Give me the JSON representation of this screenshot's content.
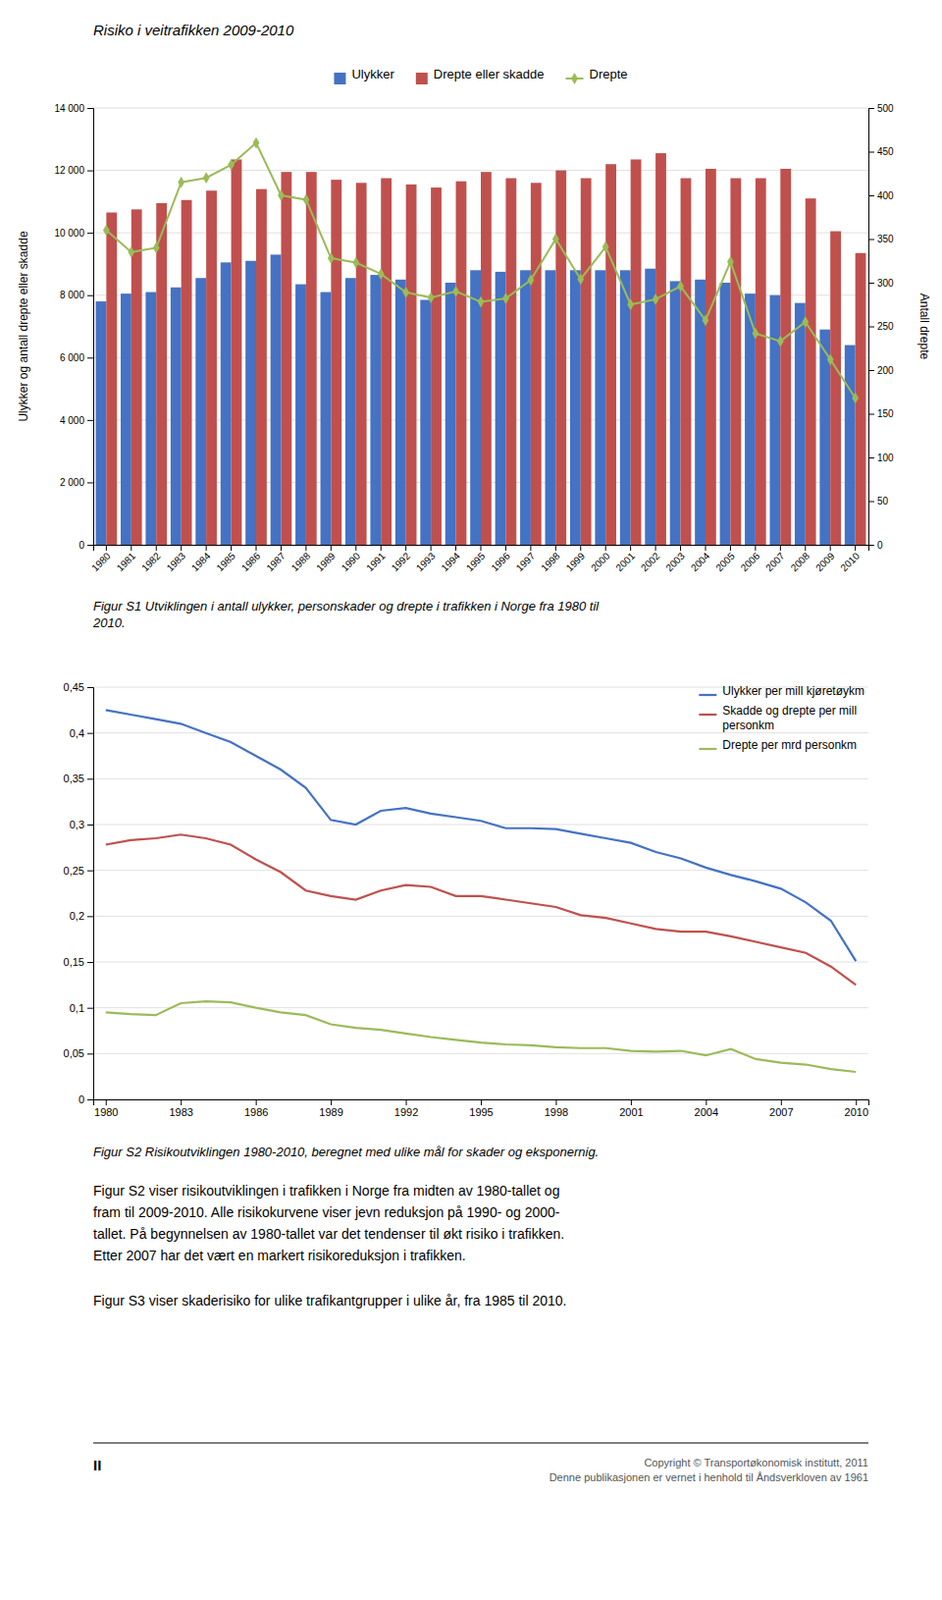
{
  "title": "Risiko i veitrafikken 2009-2010",
  "chart_data": [
    {
      "type": "bar",
      "categories": [
        1980,
        1981,
        1982,
        1983,
        1984,
        1985,
        1986,
        1987,
        1988,
        1989,
        1990,
        1991,
        1992,
        1993,
        1994,
        1995,
        1996,
        1997,
        1998,
        1999,
        2000,
        2001,
        2002,
        2003,
        2004,
        2005,
        2006,
        2007,
        2008,
        2009,
        2010
      ],
      "series": [
        {
          "name": "Ulykker",
          "type": "bar",
          "color": "#4472C4",
          "values": [
            7800,
            8050,
            8100,
            8250,
            8550,
            9050,
            9100,
            9300,
            8350,
            8100,
            8550,
            8650,
            8500,
            7850,
            8400,
            8800,
            8750,
            8800,
            8800,
            8800,
            8800,
            8800,
            8850,
            8450,
            8500,
            8400,
            8050,
            8000,
            7750,
            6900,
            6400
          ]
        },
        {
          "name": "Drepte eller skadde",
          "type": "bar",
          "color": "#C0504D",
          "values": [
            10650,
            10750,
            10950,
            11050,
            11350,
            12350,
            11400,
            11950,
            11950,
            11700,
            11600,
            11750,
            11550,
            11450,
            11650,
            11950,
            11750,
            11600,
            12000,
            11750,
            12200,
            12350,
            12550,
            11750,
            12050,
            11750,
            11750,
            12050,
            11100,
            10050,
            9350
          ]
        },
        {
          "name": "Drepte",
          "type": "line",
          "axis": "y2",
          "marker": "diamond",
          "color": "#9BBB59",
          "values": [
            360,
            335,
            340,
            415,
            420,
            435,
            460,
            400,
            395,
            328,
            323,
            310,
            289,
            283,
            290,
            278,
            282,
            303,
            350,
            304,
            341,
            275,
            281,
            296,
            257,
            324,
            242,
            233,
            255,
            212,
            168
          ]
        }
      ],
      "ylabel": "Ulykker og antall drepte eller skadde",
      "y2label": "Antall drepte",
      "ylim": [
        0,
        14000
      ],
      "yticks": [
        0,
        {
          "value": 2000,
          "label": "2 000"
        },
        {
          "value": 4000,
          "label": "4 000"
        },
        {
          "value": 6000,
          "label": "6 000"
        },
        {
          "value": 8000,
          "label": "8 000"
        },
        {
          "value": 10000,
          "label": "10 000"
        },
        {
          "value": 12000,
          "label": "12 000"
        },
        {
          "value": 14000,
          "label": "14 000"
        }
      ],
      "y2lim": [
        0,
        500
      ],
      "y2ticks": [
        0,
        50,
        100,
        150,
        200,
        250,
        300,
        350,
        400,
        450,
        500
      ],
      "grid": true,
      "legend": "top",
      "caption": [
        "Figur S1 Utviklingen i antall ulykker, personskader og drepte i trafikken i Norge fra 1980 til",
        "2010."
      ]
    },
    {
      "type": "line",
      "x": [
        1980,
        1981,
        1982,
        1983,
        1984,
        1985,
        1986,
        1987,
        1988,
        1989,
        1990,
        1991,
        1992,
        1993,
        1994,
        1995,
        1996,
        1997,
        1998,
        1999,
        2000,
        2001,
        2002,
        2003,
        2004,
        2005,
        2006,
        2007,
        2008,
        2009,
        2010
      ],
      "series": [
        {
          "name": "Ulykker per mill kjøretøykm",
          "color": "#4472C4",
          "values": [
            0.425,
            0.42,
            0.415,
            0.41,
            0.4,
            0.39,
            0.375,
            0.36,
            0.34,
            0.305,
            0.3,
            0.315,
            0.318,
            0.312,
            0.308,
            0.304,
            0.296,
            0.296,
            0.295,
            0.29,
            0.285,
            0.28,
            0.27,
            0.263,
            0.253,
            0.245,
            0.238,
            0.23,
            0.215,
            0.195,
            0.151
          ]
        },
        {
          "name": "Skadde og drepte per mill\npersonkm",
          "color": "#C0504D",
          "values": [
            0.278,
            0.283,
            0.285,
            0.289,
            0.285,
            0.278,
            0.262,
            0.248,
            0.228,
            0.222,
            0.218,
            0.228,
            0.234,
            0.232,
            0.222,
            0.222,
            0.218,
            0.214,
            0.21,
            0.201,
            0.198,
            0.192,
            0.186,
            0.183,
            0.183,
            0.178,
            0.172,
            0.166,
            0.16,
            0.145,
            0.125
          ]
        },
        {
          "name": "Drepte per mrd personkm",
          "color": "#9BBB59",
          "values": [
            0.095,
            0.093,
            0.092,
            0.105,
            0.107,
            0.106,
            0.1,
            0.095,
            0.092,
            0.082,
            0.078,
            0.076,
            0.072,
            0.068,
            0.065,
            0.062,
            0.06,
            0.059,
            0.057,
            0.056,
            0.056,
            0.053,
            0.052,
            0.053,
            0.048,
            0.055,
            0.044,
            0.04,
            0.038,
            0.033,
            0.03
          ]
        }
      ],
      "xlim": [
        1979.5,
        2010.5
      ],
      "xticks": [
        1980,
        1983,
        1986,
        1989,
        1992,
        1995,
        1998,
        2001,
        2004,
        2007,
        2010
      ],
      "ylim": [
        0,
        0.45
      ],
      "yticks": [
        0,
        {
          "value": 0.05,
          "label": "0,05"
        },
        {
          "value": 0.1,
          "label": "0,1"
        },
        {
          "value": 0.15,
          "label": "0,15"
        },
        {
          "value": 0.2,
          "label": "0,2"
        },
        {
          "value": 0.25,
          "label": "0,25"
        },
        {
          "value": 0.3,
          "label": "0,3"
        },
        {
          "value": 0.35,
          "label": "0,35"
        },
        {
          "value": 0.4,
          "label": "0,4"
        },
        {
          "value": 0.45,
          "label": "0,45"
        }
      ],
      "grid": true,
      "legend": "upper-right",
      "caption": [
        "Figur S2 Risikoutviklingen 1980-2010, beregnet med ulike mål for skader og eksponernig."
      ]
    }
  ],
  "text_body": [
    "Figur S2 viser risikoutviklingen i trafikken i Norge fra midten av 1980-tallet og",
    "fram til 2009-2010. Alle risikokurvene viser jevn reduksjon på 1990- og 2000-",
    "tallet. På begynnelsen av 1980-tallet var det tendenser til økt risiko i trafikken.",
    "Etter 2007 har det vært en markert risikoreduksjon i trafikken."
  ],
  "text_body2": "Figur S3 viser skaderisiko for ulike trafikantgrupper i ulike år, fra 1985 til 2010.",
  "page_label": "II",
  "footer_text": [
    "Copyright © Transportøkonomisk institutt, 2011",
    "Denne publikasjonen er vernet i henhold til Åndsverkloven av 1961"
  ]
}
